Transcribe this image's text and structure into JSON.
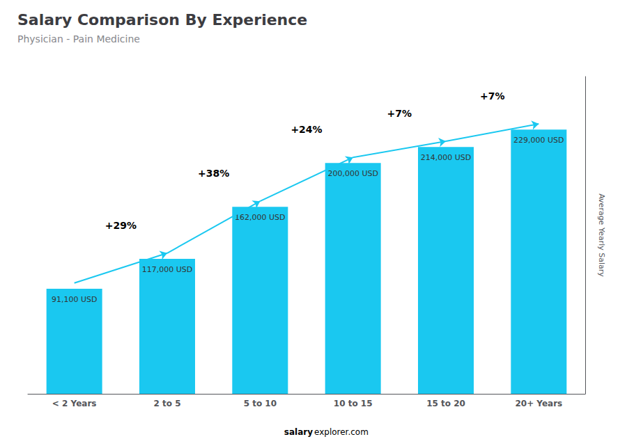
{
  "chart_data": {
    "type": "bar",
    "title": "Salary Comparison By Experience",
    "subtitle": "Physician - Pain Medicine",
    "categories": [
      "< 2 Years",
      "2 to 5",
      "5 to 10",
      "10 to 15",
      "15 to 20",
      "20+ Years"
    ],
    "values": [
      91100,
      117000,
      162000,
      200000,
      214000,
      229000
    ],
    "value_labels": [
      "91,100 USD",
      "117,000 USD",
      "162,000 USD",
      "200,000 USD",
      "214,000 USD",
      "229,000 USD"
    ],
    "data_labels": true,
    "color": "#1ac8f0",
    "ylabel": "Average Yearly Salary",
    "ylim": [
      0,
      275000
    ],
    "tick_labels": "x",
    "grid": false,
    "annotations": [
      "+29%",
      "+38%",
      "+24%",
      "+7%",
      "+7%"
    ],
    "footer": [
      "salary",
      "explorer.com"
    ]
  }
}
